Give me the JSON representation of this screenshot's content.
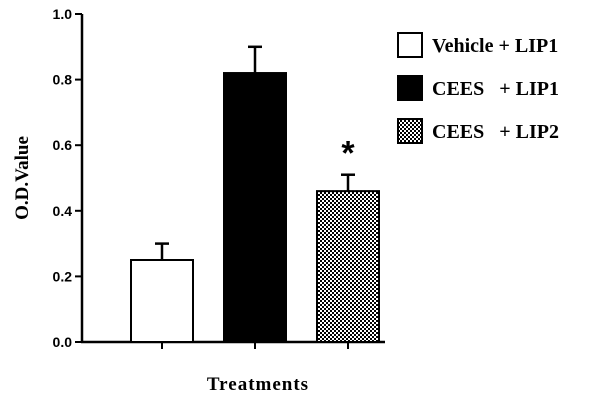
{
  "chart_data": {
    "type": "bar",
    "categories": [
      "Vehicle + LIP1",
      "CEES   + LIP1",
      "CEES   + LIP2"
    ],
    "values": [
      0.25,
      0.82,
      0.46
    ],
    "errors": [
      0.05,
      0.08,
      0.05
    ],
    "xlabel": "Treatments",
    "ylabel": "O.D.Value",
    "ylim": [
      0,
      1.0
    ],
    "yticks": [
      0.0,
      0.2,
      0.4,
      0.6,
      0.8,
      1.0
    ],
    "ytick_labels": [
      "0.0",
      "0.2",
      "0.4",
      "0.6",
      "0.8",
      "1.0"
    ],
    "annotations": [
      {
        "category": "CEES   + LIP2",
        "text": "*"
      }
    ],
    "legend": {
      "position": "top-right",
      "entries": [
        {
          "label": "Vehicle + LIP1",
          "fill": "white"
        },
        {
          "label": "CEES   + LIP1",
          "fill": "black"
        },
        {
          "label": "CEES   + LIP2",
          "fill": "checkered"
        }
      ]
    },
    "grid": false,
    "colors": {
      "bar_edge": "#000000",
      "solid": "#000000",
      "open": "#ffffff"
    }
  }
}
